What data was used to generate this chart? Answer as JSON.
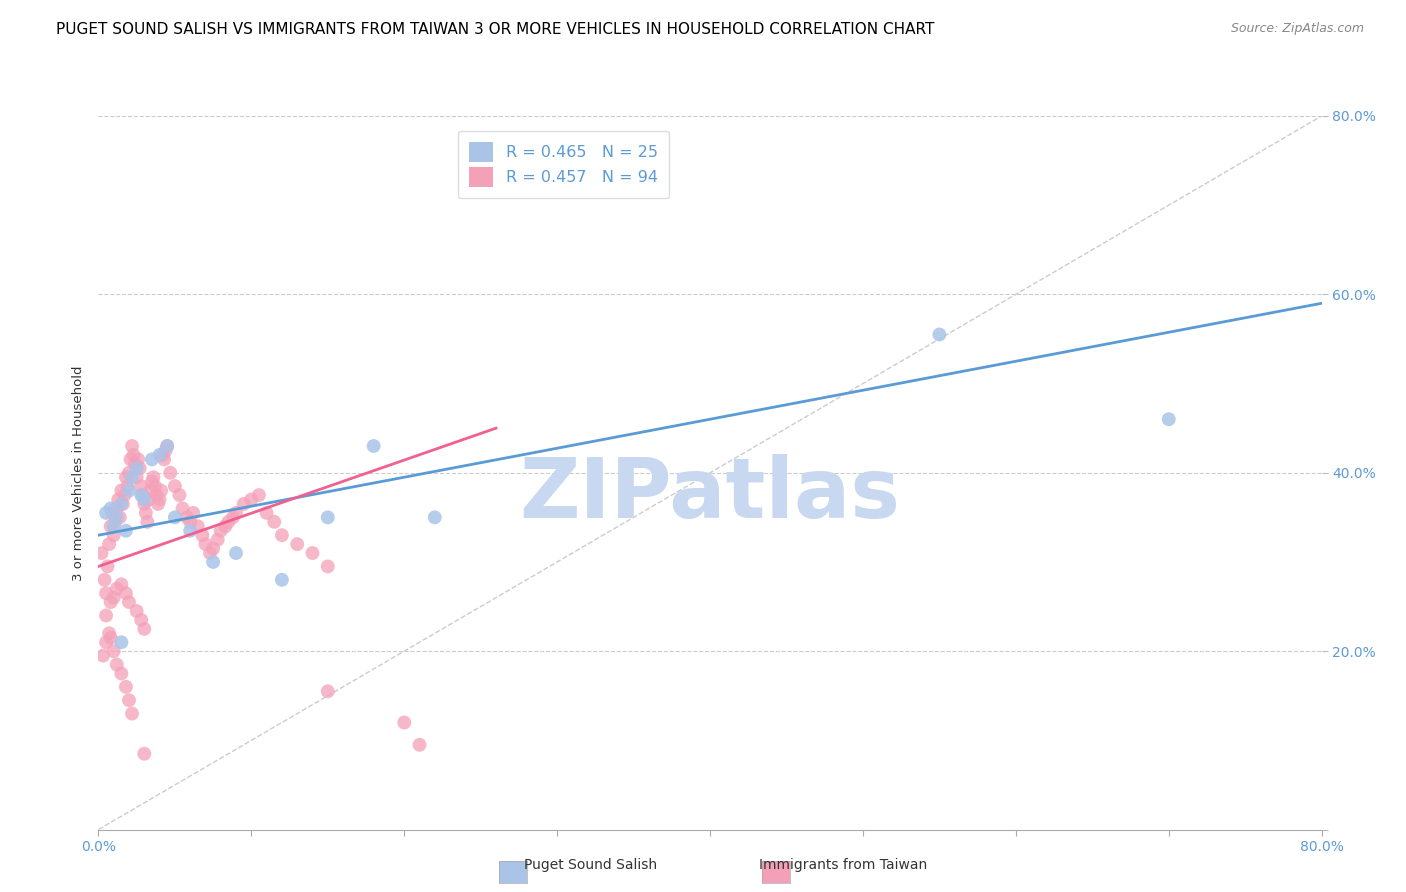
{
  "title": "PUGET SOUND SALISH VS IMMIGRANTS FROM TAIWAN 3 OR MORE VEHICLES IN HOUSEHOLD CORRELATION CHART",
  "source": "Source: ZipAtlas.com",
  "ylabel": "3 or more Vehicles in Household",
  "xlim": [
    0.0,
    0.8
  ],
  "ylim": [
    0.0,
    0.8
  ],
  "xtick_positions": [
    0.0,
    0.1,
    0.2,
    0.3,
    0.4,
    0.5,
    0.6,
    0.7,
    0.8
  ],
  "ytick_positions": [
    0.0,
    0.2,
    0.4,
    0.6,
    0.8
  ],
  "legend_label1": "Puget Sound Salish",
  "legend_label2": "Immigrants from Taiwan",
  "R1": 0.465,
  "N1": 25,
  "R2": 0.457,
  "N2": 94,
  "color1": "#aac4e8",
  "color2": "#f4a0b8",
  "line1_color": "#5b9bd5",
  "line2_color": "#f06090",
  "diagonal_color": "#cccccc",
  "watermark": "ZIPatlas",
  "watermark_color": "#c8d8f0",
  "title_fontsize": 11,
  "source_fontsize": 9,
  "axis_label_fontsize": 9.5,
  "tick_fontsize": 10,
  "tick_color": "#5b9bd5",
  "scatter1_x": [
    0.005,
    0.008,
    0.01,
    0.012,
    0.015,
    0.018,
    0.02,
    0.022,
    0.025,
    0.028,
    0.03,
    0.035,
    0.04,
    0.045,
    0.05,
    0.06,
    0.075,
    0.09,
    0.12,
    0.15,
    0.18,
    0.22,
    0.55,
    0.7,
    0.015
  ],
  "scatter1_y": [
    0.355,
    0.36,
    0.34,
    0.35,
    0.365,
    0.335,
    0.38,
    0.395,
    0.405,
    0.375,
    0.37,
    0.415,
    0.42,
    0.43,
    0.35,
    0.335,
    0.3,
    0.31,
    0.28,
    0.35,
    0.43,
    0.35,
    0.555,
    0.46,
    0.21
  ],
  "scatter2_x": [
    0.002,
    0.004,
    0.005,
    0.006,
    0.007,
    0.008,
    0.009,
    0.01,
    0.011,
    0.012,
    0.013,
    0.014,
    0.015,
    0.016,
    0.017,
    0.018,
    0.019,
    0.02,
    0.021,
    0.022,
    0.023,
    0.024,
    0.025,
    0.026,
    0.027,
    0.028,
    0.029,
    0.03,
    0.031,
    0.032,
    0.033,
    0.034,
    0.035,
    0.036,
    0.037,
    0.038,
    0.039,
    0.04,
    0.041,
    0.042,
    0.043,
    0.044,
    0.045,
    0.047,
    0.05,
    0.053,
    0.055,
    0.058,
    0.06,
    0.062,
    0.065,
    0.068,
    0.07,
    0.073,
    0.075,
    0.078,
    0.08,
    0.083,
    0.085,
    0.088,
    0.09,
    0.095,
    0.1,
    0.105,
    0.11,
    0.115,
    0.12,
    0.13,
    0.14,
    0.15,
    0.005,
    0.008,
    0.01,
    0.012,
    0.015,
    0.018,
    0.02,
    0.025,
    0.028,
    0.03,
    0.003,
    0.005,
    0.007,
    0.008,
    0.01,
    0.012,
    0.015,
    0.018,
    0.02,
    0.022,
    0.03,
    0.2,
    0.21,
    0.15
  ],
  "scatter2_y": [
    0.31,
    0.28,
    0.265,
    0.295,
    0.32,
    0.34,
    0.355,
    0.33,
    0.345,
    0.36,
    0.37,
    0.35,
    0.38,
    0.365,
    0.375,
    0.395,
    0.385,
    0.4,
    0.415,
    0.43,
    0.42,
    0.41,
    0.395,
    0.415,
    0.405,
    0.385,
    0.375,
    0.365,
    0.355,
    0.345,
    0.37,
    0.38,
    0.39,
    0.395,
    0.385,
    0.375,
    0.365,
    0.37,
    0.38,
    0.42,
    0.415,
    0.425,
    0.43,
    0.4,
    0.385,
    0.375,
    0.36,
    0.35,
    0.345,
    0.355,
    0.34,
    0.33,
    0.32,
    0.31,
    0.315,
    0.325,
    0.335,
    0.34,
    0.345,
    0.35,
    0.355,
    0.365,
    0.37,
    0.375,
    0.355,
    0.345,
    0.33,
    0.32,
    0.31,
    0.295,
    0.24,
    0.255,
    0.26,
    0.27,
    0.275,
    0.265,
    0.255,
    0.245,
    0.235,
    0.225,
    0.195,
    0.21,
    0.22,
    0.215,
    0.2,
    0.185,
    0.175,
    0.16,
    0.145,
    0.13,
    0.085,
    0.12,
    0.095,
    0.155
  ],
  "line1_x": [
    0.0,
    0.8
  ],
  "line1_y": [
    0.33,
    0.59
  ],
  "line2_x": [
    0.0,
    0.26
  ],
  "line2_y": [
    0.295,
    0.45
  ]
}
